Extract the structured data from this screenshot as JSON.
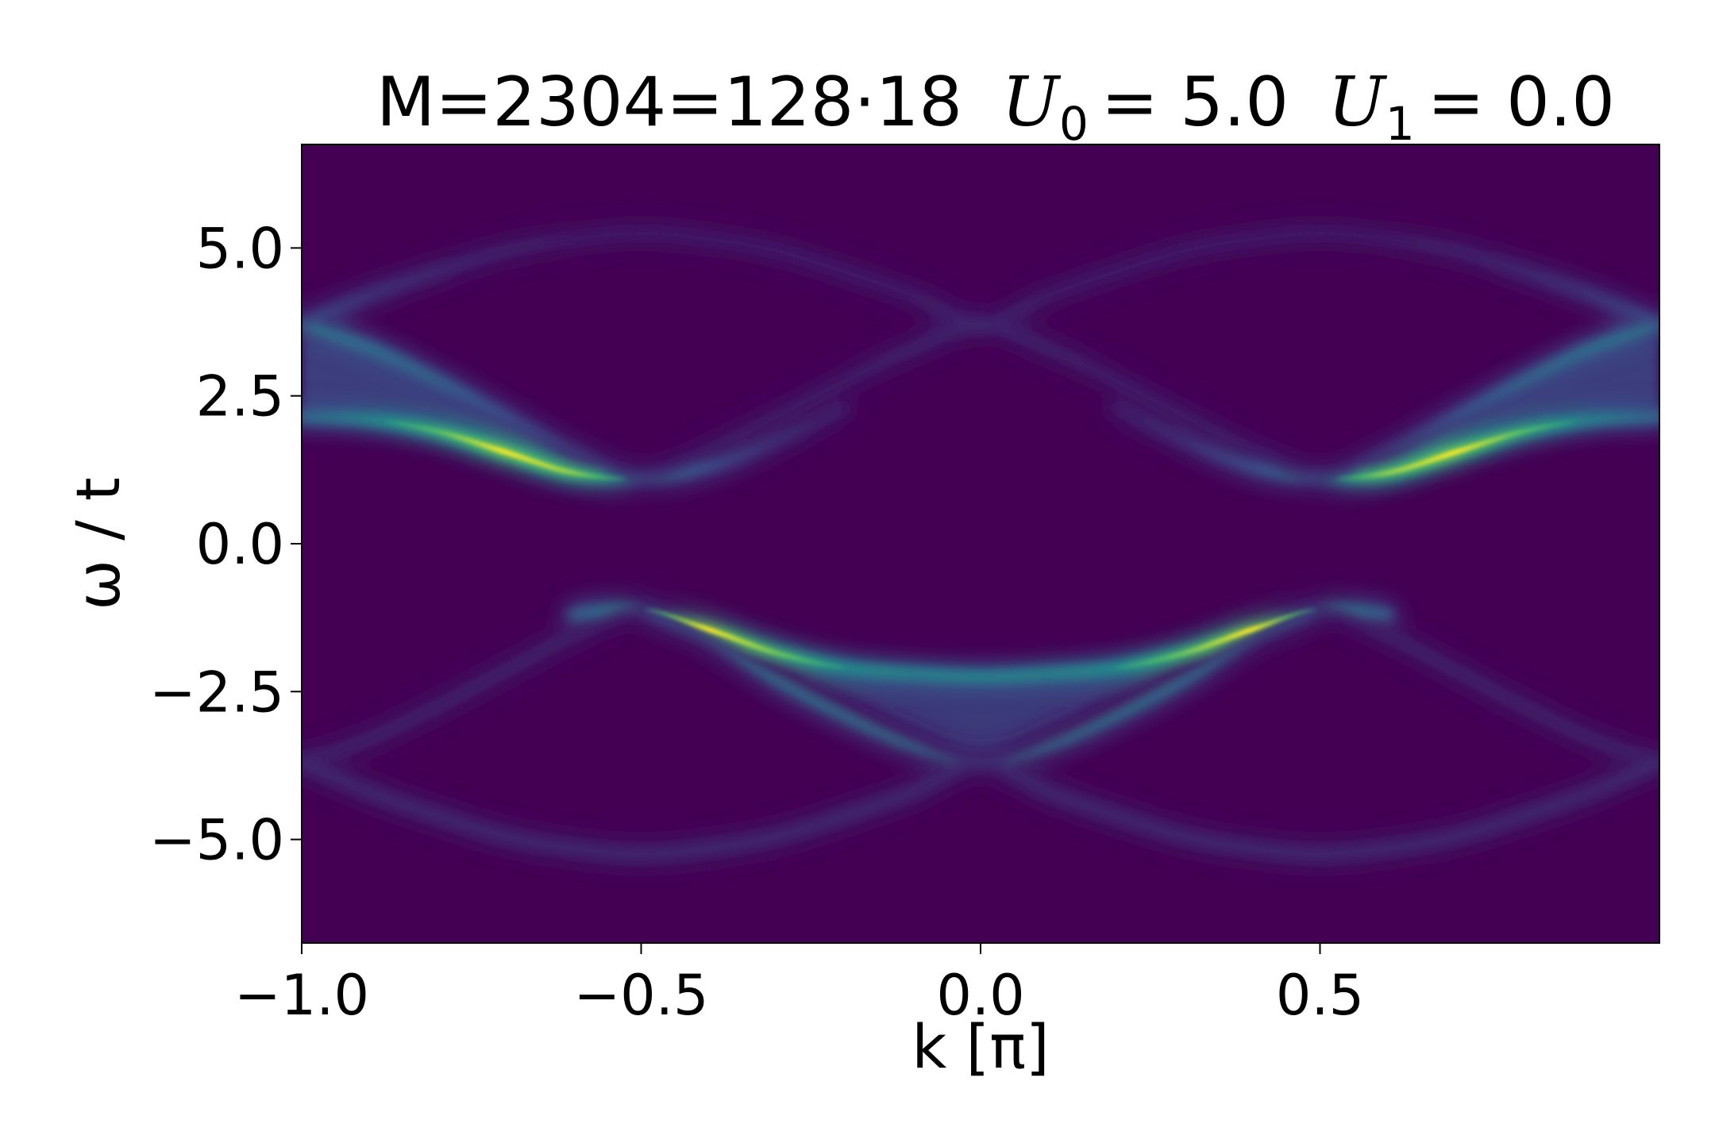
{
  "chart_data": {
    "type": "heatmap",
    "title": {
      "prefix": "M=2304=128·18",
      "u0_symbol": "U",
      "u0_sub": "0",
      "u0_value": "= 5.0",
      "u1_symbol": "U",
      "u1_sub": "1",
      "u1_value": "= 0.0"
    },
    "xlabel": "k [π]",
    "ylabel": "ω / t",
    "xlim": [
      -1.0,
      1.0
    ],
    "ylim": [
      -6.75,
      6.75
    ],
    "xticks": [
      {
        "value": -1.0,
        "label": "−1.0"
      },
      {
        "value": -0.5,
        "label": "−0.5"
      },
      {
        "value": 0.0,
        "label": "0.0"
      },
      {
        "value": 0.5,
        "label": "0.5"
      }
    ],
    "yticks": [
      {
        "value": 5.0,
        "label": "5.0"
      },
      {
        "value": 2.5,
        "label": "2.5"
      },
      {
        "value": 0.0,
        "label": "0.0"
      },
      {
        "value": -2.5,
        "label": "−2.5"
      },
      {
        "value": -5.0,
        "label": "−5.0"
      }
    ],
    "colormap": "viridis",
    "U0": 5.0,
    "U1": 0.0,
    "bands": [
      {
        "name": "upper-main",
        "k": [
          -1.0,
          -0.9,
          -0.8,
          -0.7,
          -0.6,
          -0.5,
          -0.4,
          -0.3,
          -0.2
        ],
        "omega": [
          2.15,
          2.1,
          1.9,
          1.55,
          1.2,
          1.1,
          1.3,
          1.75,
          2.3
        ],
        "weight": [
          0.4,
          0.55,
          0.75,
          1.0,
          0.85,
          0.5,
          0.3,
          0.18,
          0.1
        ]
      },
      {
        "name": "upper-main-mirror",
        "k": [
          0.2,
          0.3,
          0.4,
          0.5,
          0.6,
          0.7,
          0.8,
          0.9,
          1.0
        ],
        "omega": [
          2.3,
          1.75,
          1.3,
          1.1,
          1.2,
          1.55,
          1.9,
          2.1,
          2.15
        ],
        "weight": [
          0.1,
          0.18,
          0.3,
          0.5,
          0.85,
          1.0,
          0.75,
          0.55,
          0.4
        ]
      },
      {
        "name": "lower-main",
        "k": [
          -0.6,
          -0.5,
          -0.4,
          -0.3,
          -0.2,
          -0.1,
          0.0,
          0.1,
          0.2,
          0.3,
          0.4,
          0.5,
          0.6
        ],
        "omega": [
          -1.2,
          -1.1,
          -1.45,
          -1.85,
          -2.1,
          -2.2,
          -2.25,
          -2.2,
          -2.1,
          -1.85,
          -1.45,
          -1.1,
          -1.2
        ],
        "weight": [
          0.35,
          0.55,
          1.0,
          0.8,
          0.6,
          0.55,
          0.55,
          0.55,
          0.6,
          0.8,
          1.0,
          0.55,
          0.35
        ]
      },
      {
        "name": "lower-v",
        "k": [
          -0.5,
          -0.4,
          -0.3,
          -0.2,
          -0.1,
          0.0,
          0.1,
          0.2,
          0.3,
          0.4,
          0.5
        ],
        "omega": [
          -1.1,
          -1.6,
          -2.3,
          -2.9,
          -3.4,
          -3.7,
          -3.4,
          -2.9,
          -2.3,
          -1.6,
          -1.1
        ],
        "weight": [
          0.3,
          0.4,
          0.45,
          0.45,
          0.45,
          0.45,
          0.45,
          0.45,
          0.45,
          0.4,
          0.3
        ]
      },
      {
        "name": "upper-shadow",
        "k": [
          -1.0,
          -0.9,
          -0.8,
          -0.7,
          -0.6,
          -0.5,
          -0.4,
          -0.3,
          -0.2,
          -0.1,
          0.0,
          0.1,
          0.2,
          0.3,
          0.4,
          0.5,
          0.6,
          0.7,
          0.8,
          0.9,
          1.0
        ],
        "omega": [
          3.7,
          3.3,
          2.75,
          2.15,
          1.55,
          1.1,
          1.55,
          2.15,
          2.75,
          3.3,
          3.7,
          3.3,
          2.75,
          2.15,
          1.55,
          1.1,
          1.55,
          2.15,
          2.75,
          3.3,
          3.7
        ],
        "weight": [
          0.45,
          0.45,
          0.4,
          0.3,
          0.2,
          0.2,
          0.12,
          0.1,
          0.1,
          0.12,
          0.15,
          0.12,
          0.1,
          0.1,
          0.12,
          0.2,
          0.2,
          0.3,
          0.4,
          0.45,
          0.45
        ]
      },
      {
        "name": "lower-shadow",
        "k": [
          -1.0,
          -0.9,
          -0.8,
          -0.7,
          -0.6,
          -0.5,
          -0.4,
          -0.3,
          -0.2,
          -0.1,
          0.0,
          0.1,
          0.2,
          0.3,
          0.4,
          0.5,
          0.6,
          0.7,
          0.8,
          0.9,
          1.0
        ],
        "omega": [
          -3.7,
          -3.3,
          -2.75,
          -2.15,
          -1.55,
          -1.1,
          -1.55,
          -2.15,
          -2.75,
          -3.3,
          -3.7,
          -3.3,
          -2.75,
          -2.15,
          -1.55,
          -1.1,
          -1.55,
          -2.15,
          -2.75,
          -3.3,
          -3.7
        ],
        "weight": [
          0.12,
          0.12,
          0.12,
          0.12,
          0.12,
          0.15,
          0.12,
          0.1,
          0.1,
          0.12,
          0.15,
          0.12,
          0.1,
          0.1,
          0.12,
          0.15,
          0.12,
          0.12,
          0.12,
          0.12,
          0.12
        ]
      },
      {
        "name": "upper-outer-arc",
        "k": [
          -1.0,
          -0.9,
          -0.8,
          -0.7,
          -0.6,
          -0.5,
          -0.4,
          -0.3,
          -0.2,
          -0.1,
          0.0,
          0.1,
          0.2,
          0.3,
          0.4,
          0.5,
          0.6,
          0.7,
          0.8,
          0.9,
          1.0
        ],
        "omega": [
          3.7,
          4.2,
          4.6,
          4.95,
          5.15,
          5.25,
          5.15,
          4.95,
          4.6,
          4.2,
          3.7,
          4.2,
          4.6,
          4.95,
          5.15,
          5.25,
          5.15,
          4.95,
          4.6,
          4.2,
          3.7
        ],
        "weight": [
          0.3,
          0.2,
          0.15,
          0.12,
          0.1,
          0.1,
          0.1,
          0.1,
          0.1,
          0.1,
          0.15,
          0.1,
          0.1,
          0.1,
          0.1,
          0.1,
          0.1,
          0.12,
          0.15,
          0.2,
          0.3
        ]
      },
      {
        "name": "lower-outer-arc",
        "k": [
          -1.0,
          -0.9,
          -0.8,
          -0.7,
          -0.6,
          -0.5,
          -0.4,
          -0.3,
          -0.2,
          -0.1,
          0.0,
          0.1,
          0.2,
          0.3,
          0.4,
          0.5,
          0.6,
          0.7,
          0.8,
          0.9,
          1.0
        ],
        "omega": [
          -3.7,
          -4.2,
          -4.6,
          -4.95,
          -5.15,
          -5.25,
          -5.15,
          -4.95,
          -4.6,
          -4.2,
          -3.7,
          -4.2,
          -4.6,
          -4.95,
          -5.15,
          -5.25,
          -5.15,
          -4.95,
          -4.6,
          -4.2,
          -3.7
        ],
        "weight": [
          0.15,
          0.15,
          0.15,
          0.15,
          0.15,
          0.15,
          0.15,
          0.15,
          0.15,
          0.15,
          0.15,
          0.15,
          0.15,
          0.15,
          0.15,
          0.15,
          0.15,
          0.15,
          0.15,
          0.15,
          0.15
        ]
      }
    ]
  }
}
